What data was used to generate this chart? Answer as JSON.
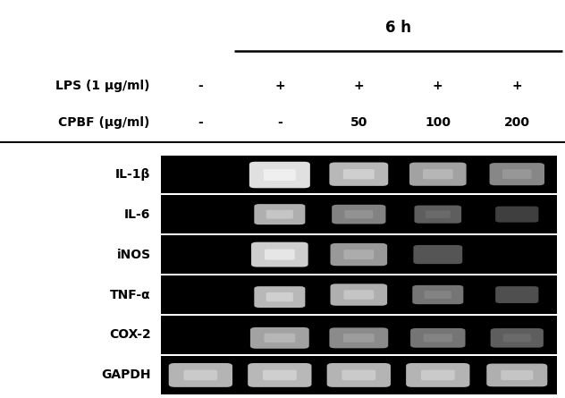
{
  "title": "6 h",
  "lps_label": "LPS (1 μg/ml)",
  "cpbf_label": "CPBF (μg/ml)",
  "lps_values": [
    "-",
    "+",
    "+",
    "+",
    "+"
  ],
  "cpbf_values": [
    "-",
    "-",
    "50",
    "100",
    "200"
  ],
  "genes": [
    "IL-1β",
    "IL-6",
    "iNOS",
    "TNF-α",
    "COX-2",
    "GAPDH"
  ],
  "num_lanes": 5,
  "band_data": {
    "IL-1β": [
      0,
      1.0,
      0.82,
      0.72,
      0.6
    ],
    "IL-6": [
      0,
      0.78,
      0.58,
      0.42,
      0.28
    ],
    "iNOS": [
      0,
      0.92,
      0.68,
      0.38,
      0
    ],
    "TNF-α": [
      0,
      0.82,
      0.78,
      0.52,
      0.35
    ],
    "COX-2": [
      0,
      0.72,
      0.62,
      0.52,
      0.42
    ],
    "GAPDH": [
      0.8,
      0.82,
      0.8,
      0.8,
      0.78
    ]
  },
  "band_widths": {
    "IL-1β": [
      0,
      0.62,
      0.6,
      0.58,
      0.56
    ],
    "IL-6": [
      0,
      0.52,
      0.55,
      0.48,
      0.44
    ],
    "iNOS": [
      0,
      0.58,
      0.58,
      0.5,
      0
    ],
    "TNF-α": [
      0,
      0.52,
      0.58,
      0.52,
      0.44
    ],
    "COX-2": [
      0,
      0.6,
      0.6,
      0.56,
      0.54
    ],
    "GAPDH": [
      0.65,
      0.65,
      0.65,
      0.65,
      0.62
    ]
  },
  "band_heights": {
    "IL-1β": [
      0,
      0.55,
      0.48,
      0.48,
      0.46
    ],
    "IL-6": [
      0,
      0.42,
      0.38,
      0.36,
      0.32
    ],
    "iNOS": [
      0,
      0.52,
      0.46,
      0.38,
      0
    ],
    "TNF-α": [
      0,
      0.44,
      0.44,
      0.38,
      0.34
    ],
    "COX-2": [
      0,
      0.42,
      0.4,
      0.38,
      0.38
    ],
    "GAPDH": [
      0.48,
      0.48,
      0.48,
      0.48,
      0.46
    ]
  },
  "band_y": {
    "IL-1β": [
      0.5,
      0.48,
      0.5,
      0.5,
      0.5
    ],
    "IL-6": [
      0.5,
      0.5,
      0.5,
      0.5,
      0.5
    ],
    "iNOS": [
      0.5,
      0.5,
      0.5,
      0.5,
      0.5
    ],
    "TNF-α": [
      0.5,
      0.44,
      0.5,
      0.5,
      0.5
    ],
    "COX-2": [
      0.5,
      0.42,
      0.42,
      0.42,
      0.42
    ],
    "GAPDH": [
      0.5,
      0.5,
      0.5,
      0.5,
      0.5
    ]
  },
  "bg_color": "#000000",
  "panel_bg": "#ffffff",
  "label_fontsize": 10,
  "title_fontsize": 12,
  "header_fontsize": 10
}
